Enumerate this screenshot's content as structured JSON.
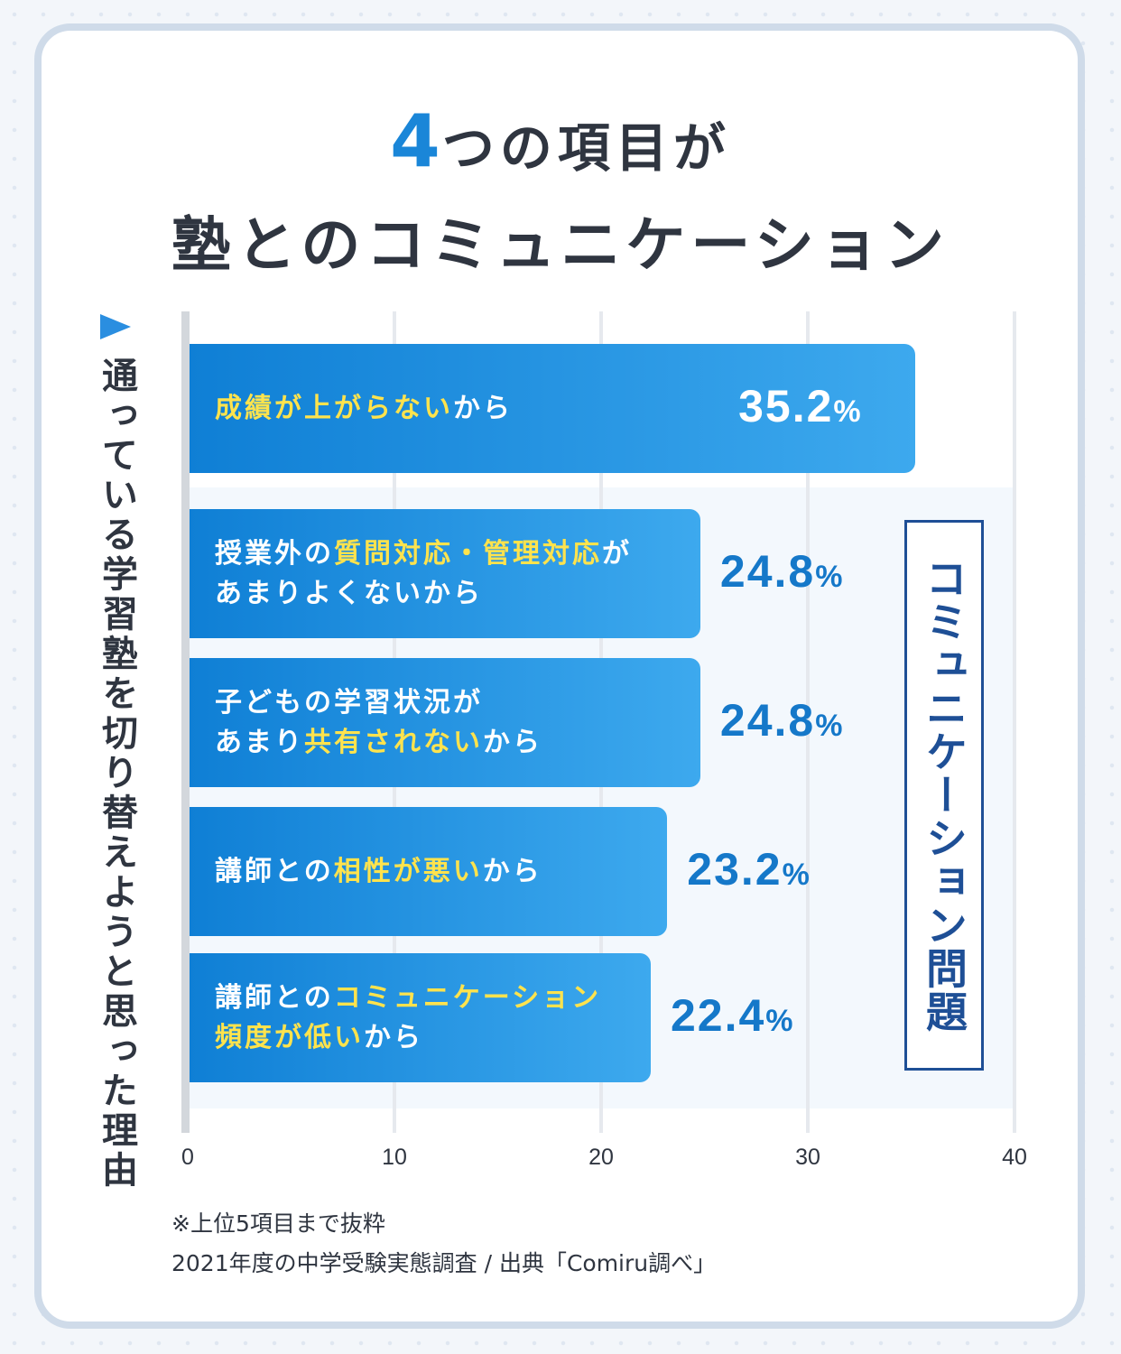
{
  "header": {
    "title_number": "4",
    "title_line1_rest": "つの項目が",
    "title_line2": "塾とのコミュニケーション"
  },
  "y_axis_label": "通っている学習塾を切り替えようと思った理由",
  "group_label": "コミュニケーション問題",
  "notes": {
    "line1": "※上位5項目まで抜粋",
    "line2": "2021年度の中学受験実態調査 / 出典「Comiru調べ」"
  },
  "colors": {
    "bar_start": "#0f7fd5",
    "bar_end": "#3da9ee",
    "highlight": "#ffe34d",
    "value_blue": "#1578c9",
    "title_accent": "#1a86d8",
    "group_box": "#1e4f96"
  },
  "chart_data": {
    "type": "bar",
    "orientation": "horizontal",
    "xlim": [
      0,
      40
    ],
    "x_ticks": [
      "0",
      "10",
      "20",
      "30",
      "40"
    ],
    "unit": "%",
    "grid": true,
    "categories": [
      "成績が上がらないから",
      "授業外の質問対応・管理対応があまりよくないから",
      "子どもの学習状況があまり共有されないから",
      "講師との相性が悪いから",
      "講師とのコミュニケーション頻度が低いから"
    ],
    "values": [
      35.2,
      24.8,
      24.8,
      23.2,
      22.4
    ],
    "value_labels": [
      "35.2",
      "24.8",
      "24.8",
      "23.2",
      "22.4"
    ],
    "label_segments": [
      [
        [
          {
            "t": "成績が上がらない",
            "hl": true
          },
          {
            "t": "から",
            "hl": false
          }
        ]
      ],
      [
        [
          {
            "t": "授業外の",
            "hl": false
          },
          {
            "t": "質問対応・管理対応",
            "hl": true
          },
          {
            "t": "が",
            "hl": false
          }
        ],
        [
          {
            "t": "あまりよくないから",
            "hl": false
          }
        ]
      ],
      [
        [
          {
            "t": "子どもの学習状況が",
            "hl": false
          }
        ],
        [
          {
            "t": "あまり",
            "hl": false
          },
          {
            "t": "共有されない",
            "hl": true
          },
          {
            "t": "から",
            "hl": false
          }
        ]
      ],
      [
        [
          {
            "t": "講師との",
            "hl": false
          },
          {
            "t": "相性が悪い",
            "hl": true
          },
          {
            "t": "から",
            "hl": false
          }
        ]
      ],
      [
        [
          {
            "t": "講師との",
            "hl": false
          },
          {
            "t": "コミュニケーション",
            "hl": true
          }
        ],
        [
          {
            "t": "頻度が低い",
            "hl": true
          },
          {
            "t": "から",
            "hl": false
          }
        ]
      ]
    ]
  }
}
